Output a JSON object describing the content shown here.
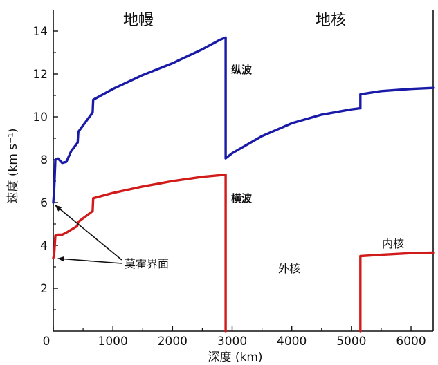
{
  "chart_data": {
    "type": "line",
    "title": "",
    "xlabel": "深度 (km)",
    "ylabel": "速度 (km s⁻¹)",
    "xlim": [
      0,
      6371
    ],
    "ylim": [
      0,
      15
    ],
    "xticks": [
      0,
      1000,
      2000,
      3000,
      4000,
      5000,
      6000
    ],
    "xtick_labels": [
      "0",
      "1000",
      "2000",
      "3000",
      "4000",
      "5000",
      "6000"
    ],
    "yticks": [
      2,
      4,
      6,
      8,
      10,
      12,
      14
    ],
    "ytick_labels": [
      "2",
      "4",
      "6",
      "8",
      "10",
      "12",
      "14"
    ],
    "grid": false,
    "region_labels": {
      "mantle": "地幔",
      "core": "地核"
    },
    "series": [
      {
        "name": "纵波",
        "color": "#1a1aa8",
        "points": [
          [
            0,
            6.0
          ],
          [
            15,
            6.6
          ],
          [
            35,
            8.0
          ],
          [
            80,
            8.05
          ],
          [
            150,
            7.85
          ],
          [
            220,
            7.9
          ],
          [
            300,
            8.4
          ],
          [
            410,
            8.8
          ],
          [
            420,
            9.3
          ],
          [
            660,
            10.2
          ],
          [
            670,
            10.8
          ],
          [
            1000,
            11.3
          ],
          [
            1500,
            11.95
          ],
          [
            2000,
            12.5
          ],
          [
            2500,
            13.15
          ],
          [
            2800,
            13.6
          ],
          [
            2891,
            13.7
          ],
          [
            2891,
            8.06
          ],
          [
            3000,
            8.3
          ],
          [
            3500,
            9.1
          ],
          [
            4000,
            9.7
          ],
          [
            4500,
            10.1
          ],
          [
            5000,
            10.35
          ],
          [
            5150,
            10.4
          ],
          [
            5150,
            11.05
          ],
          [
            5500,
            11.2
          ],
          [
            6000,
            11.3
          ],
          [
            6371,
            11.35
          ]
        ]
      },
      {
        "name": "横波",
        "color": "#d11a1a",
        "points": [
          [
            0,
            3.4
          ],
          [
            15,
            3.6
          ],
          [
            35,
            4.45
          ],
          [
            80,
            4.5
          ],
          [
            150,
            4.5
          ],
          [
            220,
            4.6
          ],
          [
            400,
            4.9
          ],
          [
            420,
            5.1
          ],
          [
            660,
            5.6
          ],
          [
            670,
            6.2
          ],
          [
            1000,
            6.45
          ],
          [
            1500,
            6.75
          ],
          [
            2000,
            7.0
          ],
          [
            2500,
            7.2
          ],
          [
            2891,
            7.3
          ],
          [
            2891,
            0
          ]
        ]
      },
      {
        "name": "",
        "color": "#d11a1a",
        "points": [
          [
            5150,
            0
          ],
          [
            5150,
            3.5
          ],
          [
            5500,
            3.56
          ],
          [
            6000,
            3.64
          ],
          [
            6371,
            3.66
          ]
        ]
      }
    ],
    "annotations": {
      "moho": "莫霍界面",
      "outer_core": "外核",
      "inner_core": "内核"
    }
  }
}
